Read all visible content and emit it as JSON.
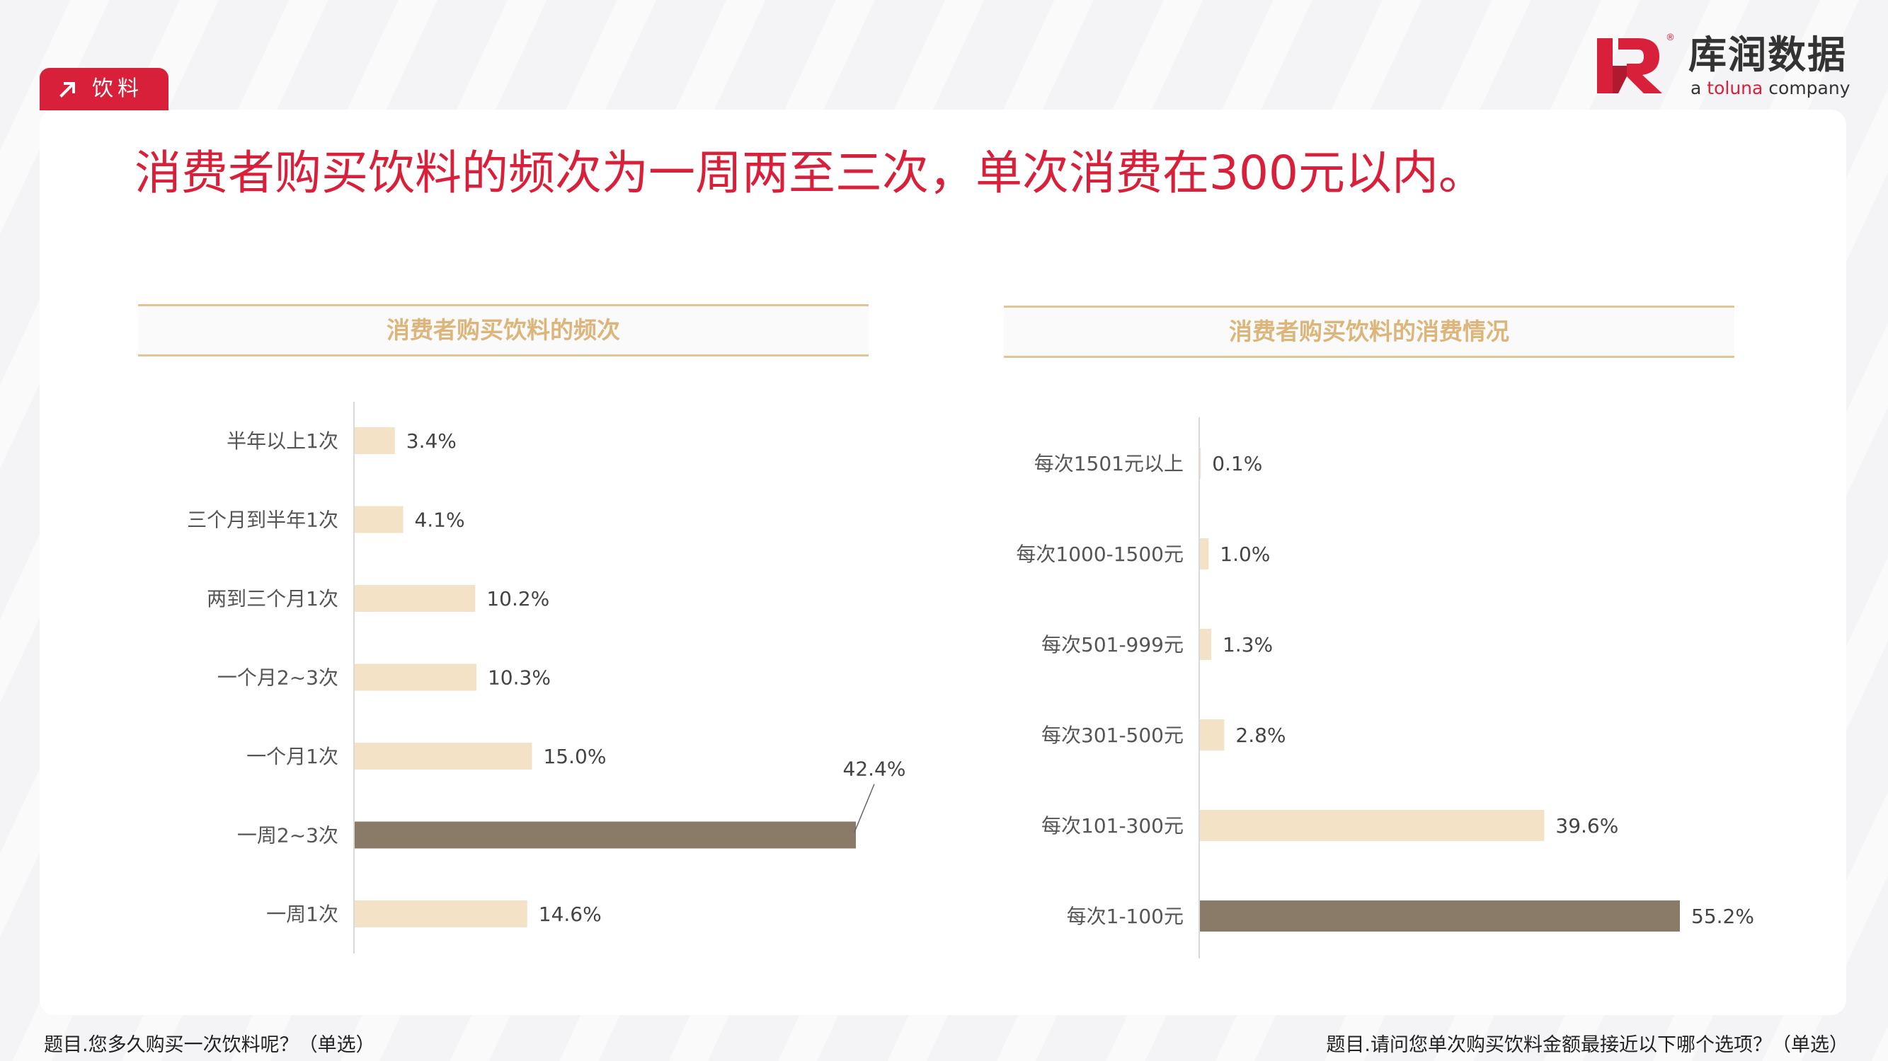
{
  "tag": {
    "label": "饮料"
  },
  "logo": {
    "cn": "库润数据",
    "en_prefix": "a ",
    "en_brand": "toluna",
    "en_suffix": " company",
    "reg": "®"
  },
  "headline": "消费者购买饮料的频次为一周两至三次，单次消费在300元以内。",
  "colors": {
    "accent": "#d8203a",
    "bar_light": "#f3e2c6",
    "bar_dark": "#8a7b69",
    "title_gold": "#dcb57a"
  },
  "chart_data": [
    {
      "type": "bar",
      "orientation": "horizontal",
      "title": "消费者购买饮料的频次",
      "categories": [
        "半年以上1次",
        "三个月到半年1次",
        "两到三个月1次",
        "一个月2~3次",
        "一个月1次",
        "一周2~3次",
        "一周1次"
      ],
      "values": [
        3.4,
        4.1,
        10.2,
        10.3,
        15.0,
        42.4,
        14.6
      ],
      "labels": [
        "3.4%",
        "4.1%",
        "10.2%",
        "10.3%",
        "15.0%",
        "42.4%",
        "14.6%"
      ],
      "highlight_index": 5,
      "xlim": [
        0,
        42.4
      ],
      "grid": false,
      "question": "题目.您多久购买一次饮料呢？（单选）"
    },
    {
      "type": "bar",
      "orientation": "horizontal",
      "title": "消费者购买饮料的消费情况",
      "categories": [
        "每次1501元以上",
        "每次1000-1500元",
        "每次501-999元",
        "每次301-500元",
        "每次101-300元",
        "每次1-100元"
      ],
      "values": [
        0.1,
        1.0,
        1.3,
        2.8,
        39.6,
        55.2
      ],
      "labels": [
        "0.1%",
        "1.0%",
        "1.3%",
        "2.8%",
        "39.6%",
        "55.2%"
      ],
      "highlight_index": 5,
      "xlim": [
        0,
        55.2
      ],
      "grid": false,
      "question": "题目.请问您单次购买饮料金额最接近以下哪个选项？（单选）"
    }
  ]
}
